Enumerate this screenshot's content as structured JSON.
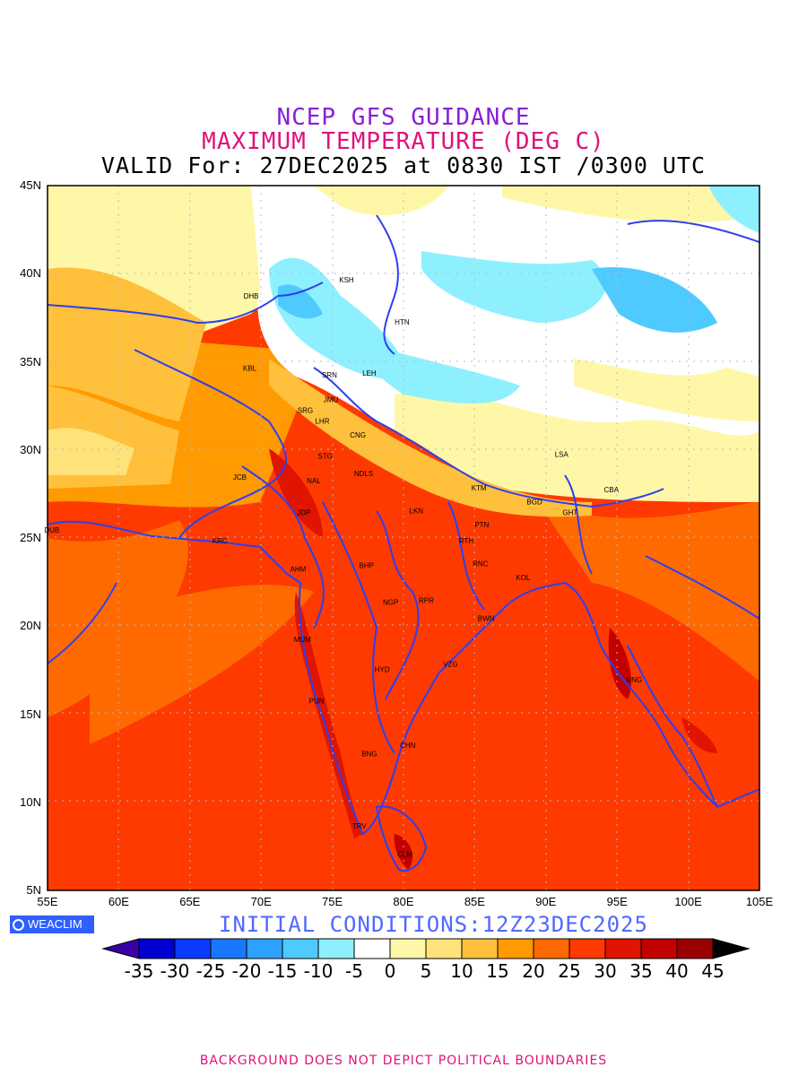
{
  "header": {
    "title_line1": "NCEP GFS GUIDANCE",
    "title_line2": "MAXIMUM TEMPERATURE (DEG C)",
    "title_line3": "VALID For: 27DEC2025 at 0830 IST /0300 UTC"
  },
  "axes": {
    "lat_labels": [
      "45N",
      "40N",
      "35N",
      "30N",
      "25N",
      "20N",
      "15N",
      "10N",
      "5N"
    ],
    "lon_labels": [
      "55E",
      "60E",
      "65E",
      "70E",
      "75E",
      "80E",
      "85E",
      "90E",
      "95E",
      "100E",
      "105E"
    ],
    "lat_range": [
      5,
      45
    ],
    "lon_range": [
      55,
      105
    ],
    "grid": "dotted"
  },
  "cities": [
    {
      "name": "KSH",
      "lon": 76.0,
      "lat": 39.5
    },
    {
      "name": "DHB",
      "lon": 69.3,
      "lat": 38.6
    },
    {
      "name": "HTN",
      "lon": 79.9,
      "lat": 37.1
    },
    {
      "name": "KBL",
      "lon": 69.2,
      "lat": 34.5
    },
    {
      "name": "SRN",
      "lon": 74.8,
      "lat": 34.1
    },
    {
      "name": "LEH",
      "lon": 77.6,
      "lat": 34.2
    },
    {
      "name": "JMU",
      "lon": 74.9,
      "lat": 32.7
    },
    {
      "name": "SRG",
      "lon": 73.1,
      "lat": 32.1
    },
    {
      "name": "LHR",
      "lon": 74.3,
      "lat": 31.5
    },
    {
      "name": "CNG",
      "lon": 76.8,
      "lat": 30.7
    },
    {
      "name": "STG",
      "lon": 74.5,
      "lat": 29.5
    },
    {
      "name": "NDLS",
      "lon": 77.2,
      "lat": 28.5
    },
    {
      "name": "JCB",
      "lon": 68.5,
      "lat": 28.3
    },
    {
      "name": "NAL",
      "lon": 73.7,
      "lat": 28.1
    },
    {
      "name": "LSA",
      "lon": 91.1,
      "lat": 29.6
    },
    {
      "name": "KTM",
      "lon": 85.3,
      "lat": 27.7
    },
    {
      "name": "CBA",
      "lon": 94.6,
      "lat": 27.6
    },
    {
      "name": "BGD",
      "lon": 89.2,
      "lat": 26.9
    },
    {
      "name": "GHT",
      "lon": 91.7,
      "lat": 26.3
    },
    {
      "name": "LKN",
      "lon": 80.9,
      "lat": 26.4
    },
    {
      "name": "JDP",
      "lon": 73.0,
      "lat": 26.3
    },
    {
      "name": "DUB",
      "lon": 55.3,
      "lat": 25.3
    },
    {
      "name": "PTN",
      "lon": 85.5,
      "lat": 25.6
    },
    {
      "name": "KRC",
      "lon": 67.1,
      "lat": 24.7
    },
    {
      "name": "RTH",
      "lon": 84.4,
      "lat": 24.7
    },
    {
      "name": "AHM",
      "lon": 72.6,
      "lat": 23.1
    },
    {
      "name": "BHP",
      "lon": 77.4,
      "lat": 23.3
    },
    {
      "name": "RNC",
      "lon": 85.4,
      "lat": 23.4
    },
    {
      "name": "KOL",
      "lon": 88.4,
      "lat": 22.6
    },
    {
      "name": "NGP",
      "lon": 79.1,
      "lat": 21.2
    },
    {
      "name": "RPR",
      "lon": 81.6,
      "lat": 21.3
    },
    {
      "name": "BWN",
      "lon": 85.8,
      "lat": 20.3
    },
    {
      "name": "MUM",
      "lon": 72.9,
      "lat": 19.1
    },
    {
      "name": "HYD",
      "lon": 78.5,
      "lat": 17.4
    },
    {
      "name": "VZG",
      "lon": 83.3,
      "lat": 17.7
    },
    {
      "name": "RNG",
      "lon": 96.2,
      "lat": 16.8
    },
    {
      "name": "PUN",
      "lon": 73.9,
      "lat": 15.6
    },
    {
      "name": "CHN",
      "lon": 80.3,
      "lat": 13.1
    },
    {
      "name": "BNG",
      "lon": 77.6,
      "lat": 12.6
    },
    {
      "name": "TRV",
      "lon": 76.9,
      "lat": 8.5
    },
    {
      "name": "CLM",
      "lon": 80.1,
      "lat": 6.9
    }
  ],
  "initial_conditions": "INITIAL CONDITIONS:12Z23DEC2025",
  "colorbar": {
    "labels": [
      "-35",
      "-30",
      "-25",
      "-20",
      "-15",
      "-10",
      "-5",
      "0",
      "5",
      "10",
      "15",
      "20",
      "25",
      "30",
      "35",
      "40",
      "45"
    ],
    "colors": [
      "#3a00a8",
      "#0000d0",
      "#0a3aff",
      "#1878ff",
      "#2ea0ff",
      "#4fcaff",
      "#8ef0ff",
      "#ffffff",
      "#fff7a8",
      "#ffe27a",
      "#ffc03c",
      "#ff9a00",
      "#ff6a00",
      "#ff3a00",
      "#e01400",
      "#c20000",
      "#9a0000",
      "#000000"
    ]
  },
  "logo": "WEACLIM",
  "footer": "BACKGROUND DOES NOT DEPICT POLITICAL BOUNDARIES"
}
